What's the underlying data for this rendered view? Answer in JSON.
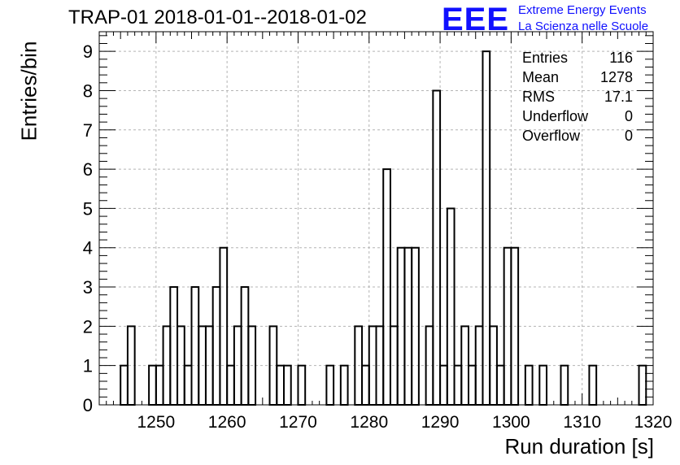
{
  "title": "TRAP-01 2018-01-01--2018-01-02",
  "logo": {
    "mark": "EEE",
    "line1": "Extreme Energy Events",
    "line2": "La Scienza nelle Scuole",
    "color": "#1010ff"
  },
  "stats": [
    {
      "label": "Entries",
      "value": "116"
    },
    {
      "label": "Mean",
      "value": "1278"
    },
    {
      "label": "RMS",
      "value": "17.1"
    },
    {
      "label": "Underflow",
      "value": "0"
    },
    {
      "label": "Overflow",
      "value": "0"
    }
  ],
  "chart_data": {
    "type": "bar",
    "histogram": true,
    "title": "TRAP-01 2018-01-01--2018-01-02",
    "xlabel": "Run duration [s]",
    "ylabel": "Entries/bin",
    "xlim": [
      1242,
      1320
    ],
    "ylim": [
      0,
      9.5
    ],
    "xticks": [
      1250,
      1260,
      1270,
      1280,
      1290,
      1300,
      1310,
      1320
    ],
    "yticks": [
      0,
      1,
      2,
      3,
      4,
      5,
      6,
      7,
      8,
      9
    ],
    "bin_width": 1,
    "grid": true,
    "bins": [
      {
        "x": 1245,
        "y": 1
      },
      {
        "x": 1246,
        "y": 2
      },
      {
        "x": 1249,
        "y": 1
      },
      {
        "x": 1250,
        "y": 1
      },
      {
        "x": 1251,
        "y": 2
      },
      {
        "x": 1252,
        "y": 3
      },
      {
        "x": 1253,
        "y": 2
      },
      {
        "x": 1254,
        "y": 1
      },
      {
        "x": 1255,
        "y": 3
      },
      {
        "x": 1256,
        "y": 2
      },
      {
        "x": 1257,
        "y": 2
      },
      {
        "x": 1258,
        "y": 3
      },
      {
        "x": 1259,
        "y": 4
      },
      {
        "x": 1260,
        "y": 1
      },
      {
        "x": 1261,
        "y": 2
      },
      {
        "x": 1262,
        "y": 3
      },
      {
        "x": 1263,
        "y": 2
      },
      {
        "x": 1266,
        "y": 2
      },
      {
        "x": 1267,
        "y": 1
      },
      {
        "x": 1268,
        "y": 1
      },
      {
        "x": 1270,
        "y": 1
      },
      {
        "x": 1274,
        "y": 1
      },
      {
        "x": 1276,
        "y": 1
      },
      {
        "x": 1278,
        "y": 2
      },
      {
        "x": 1279,
        "y": 1
      },
      {
        "x": 1280,
        "y": 2
      },
      {
        "x": 1281,
        "y": 2
      },
      {
        "x": 1282,
        "y": 6
      },
      {
        "x": 1283,
        "y": 2
      },
      {
        "x": 1284,
        "y": 4
      },
      {
        "x": 1285,
        "y": 4
      },
      {
        "x": 1286,
        "y": 4
      },
      {
        "x": 1288,
        "y": 2
      },
      {
        "x": 1289,
        "y": 8
      },
      {
        "x": 1290,
        "y": 1
      },
      {
        "x": 1291,
        "y": 5
      },
      {
        "x": 1292,
        "y": 1
      },
      {
        "x": 1293,
        "y": 2
      },
      {
        "x": 1294,
        "y": 1
      },
      {
        "x": 1295,
        "y": 2
      },
      {
        "x": 1296,
        "y": 9
      },
      {
        "x": 1297,
        "y": 2
      },
      {
        "x": 1298,
        "y": 1
      },
      {
        "x": 1299,
        "y": 4
      },
      {
        "x": 1300,
        "y": 4
      },
      {
        "x": 1302,
        "y": 1
      },
      {
        "x": 1304,
        "y": 1
      },
      {
        "x": 1307,
        "y": 1
      },
      {
        "x": 1311,
        "y": 1
      },
      {
        "x": 1318,
        "y": 1
      }
    ]
  }
}
